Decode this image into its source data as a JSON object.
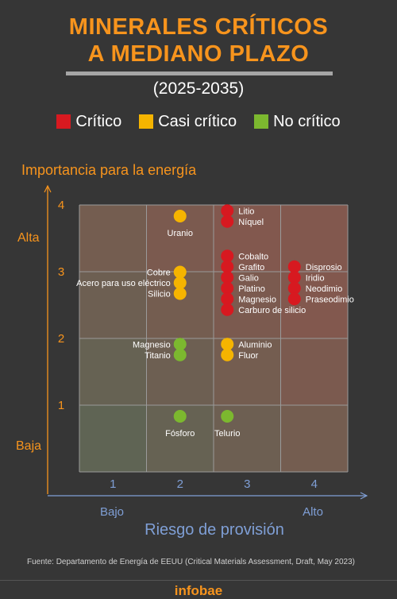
{
  "header": {
    "title_line1": "MINERALES CRÍTICOS",
    "title_line2": "A MEDIANO PLAZO",
    "subtitle": "(2025-2035)"
  },
  "legend": [
    {
      "label": "Crítico",
      "color": "#d71920"
    },
    {
      "label": "Casi crítico",
      "color": "#f5b400"
    },
    {
      "label": "No crítico",
      "color": "#7cb82f"
    }
  ],
  "chart_data": {
    "type": "scatter",
    "ylabel": "Importancia para la energía",
    "xlabel": "Riesgo de provisión",
    "xlim": [
      0.5,
      4.5
    ],
    "ylim": [
      0.5,
      4.5
    ],
    "x_ticks": [
      1,
      2,
      3,
      4
    ],
    "y_ticks": [
      1,
      2,
      3,
      4
    ],
    "y_range_labels": {
      "low": "Baja",
      "high": "Alta"
    },
    "x_range_labels": {
      "low": "Bajo",
      "high": "Alto"
    },
    "grid": true,
    "colors": {
      "Crítico": "#d71920",
      "Casi crítico": "#f5b400",
      "No crítico": "#7cb82f"
    },
    "clusters": [
      {
        "x": 2,
        "y": 4,
        "category": "Casi crítico",
        "label_side": "below",
        "points": [
          "Uranio"
        ]
      },
      {
        "x": 3,
        "y": 4,
        "category": "Crítico",
        "label_side": "right",
        "points": [
          "Litio",
          "Níquel"
        ]
      },
      {
        "x": 2,
        "y": 3,
        "category": "Casi crítico",
        "label_side": "left",
        "points": [
          "Cobre",
          "Acero para uso eléctrico",
          "Silicio"
        ]
      },
      {
        "x": 3,
        "y": 3,
        "category": "Crítico",
        "label_side": "right",
        "points": [
          "Cobalto",
          "Grafito",
          "Galio",
          "Platino",
          "Magnesio",
          "Carburo de silicio"
        ]
      },
      {
        "x": 4,
        "y": 3,
        "category": "Crítico",
        "label_side": "right",
        "points": [
          "Disprosio",
          "Iridio",
          "Neodimio",
          "Praseodimio"
        ]
      },
      {
        "x": 2,
        "y": 2,
        "category": "No crítico",
        "label_side": "left",
        "points": [
          "Magnesio",
          "Titanio"
        ]
      },
      {
        "x": 3,
        "y": 2,
        "category": "Casi crítico",
        "label_side": "right",
        "points": [
          "Aluminio",
          "Fluor"
        ]
      },
      {
        "x": 2,
        "y": 1,
        "category": "No crítico",
        "label_side": "below",
        "points": [
          "Fósforo"
        ]
      },
      {
        "x": 3,
        "y": 1,
        "category": "No crítico",
        "label_side": "below",
        "points": [
          "Telurio"
        ]
      }
    ]
  },
  "footer": {
    "source": "Fuente: Departamento de Energía de EEUU (Critical Materials Assessment, Draft, May 2023)",
    "brand": "infobae"
  }
}
